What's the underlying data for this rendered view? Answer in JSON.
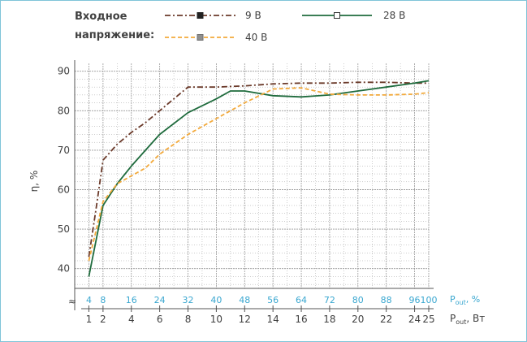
{
  "colors": {
    "frame": "#7fc4d8",
    "grid": "#9a9a9a",
    "axis_text": "#404040",
    "percent_axis": "#3aa7d0"
  },
  "chart_data": {
    "type": "line",
    "legend_title_line1": "Входное",
    "legend_title_line2": "напряжение:",
    "ylabel": "η, %",
    "x_axis_label_main": "P",
    "x_axis_label_sub": "out",
    "x_axis_label_unit": ", Вт",
    "x2_axis_label_unit": ", %",
    "legend_position": "top",
    "grid": true,
    "xlim": [
      0,
      25
    ],
    "ylim": [
      35,
      92
    ],
    "y_ticks": [
      40,
      50,
      60,
      70,
      80,
      90
    ],
    "x_ticks": [
      1,
      2,
      4,
      6,
      8,
      10,
      12,
      14,
      16,
      18,
      20,
      22,
      24,
      25
    ],
    "x_ticks_percent": [
      4,
      8,
      16,
      24,
      32,
      40,
      48,
      56,
      64,
      72,
      80,
      88,
      96,
      100
    ],
    "axis_break_symbol": "≈",
    "series": [
      {
        "name": "9 В",
        "color": "#6b3a2a",
        "dash": "dashdot",
        "marker": "filled-square",
        "x": [
          1,
          1.5,
          2,
          3,
          4,
          5,
          6,
          7,
          8,
          9,
          10,
          12,
          14,
          16,
          18,
          20,
          22,
          24,
          25
        ],
        "y": [
          43,
          55,
          67.5,
          71.5,
          74.5,
          77,
          80,
          83,
          86,
          86,
          86,
          86.3,
          86.8,
          87,
          87,
          87.2,
          87.2,
          87,
          87
        ]
      },
      {
        "name": "28 В",
        "color": "#1f6b3d",
        "dash": "solid",
        "marker": "open-square",
        "x": [
          1,
          2,
          3,
          4,
          5,
          6,
          8,
          10,
          11,
          12,
          14,
          16,
          18,
          20,
          22,
          24,
          25
        ],
        "y": [
          38,
          56,
          61.5,
          66,
          70,
          74,
          79.5,
          83,
          85,
          85,
          83.8,
          83.5,
          84,
          85,
          86,
          87,
          87.6
        ]
      },
      {
        "name": "40 В",
        "color": "#f2a93b",
        "dash": "dashed",
        "marker": "gray-square",
        "x": [
          1,
          2,
          3,
          4,
          5,
          6,
          8,
          10,
          12,
          14,
          16,
          18,
          20,
          22,
          24,
          25
        ],
        "y": [
          42,
          57,
          61.5,
          63.5,
          65.5,
          69,
          74,
          78,
          82,
          85.5,
          85.8,
          84.2,
          84,
          84,
          84.2,
          84.6
        ]
      }
    ]
  }
}
